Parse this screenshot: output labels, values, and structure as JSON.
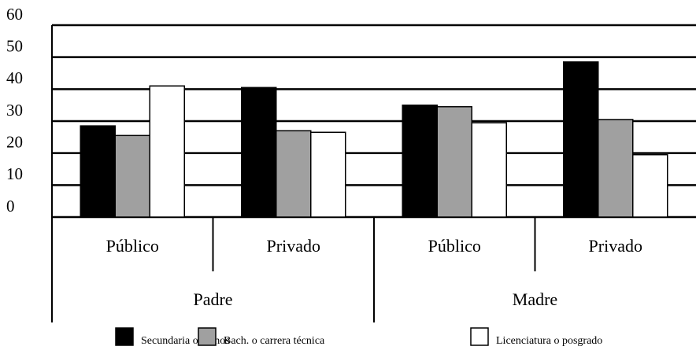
{
  "chart_data": {
    "type": "bar",
    "groups": [
      "Padre",
      "Madre"
    ],
    "categories": [
      "Público",
      "Privado",
      "Público",
      "Privado"
    ],
    "series": [
      {
        "name": "Secundaria o menos",
        "color": "#000000",
        "values": [
          28.5,
          40.5,
          35,
          48.5
        ]
      },
      {
        "name": "Bach. o carrera técnica",
        "color": "#a0a0a0",
        "values": [
          25.5,
          27,
          34.5,
          30.5
        ]
      },
      {
        "name": "Licenciatura o posgrado",
        "color": "#ffffff",
        "values": [
          41,
          26.5,
          29.5,
          19.5
        ]
      }
    ],
    "ylim": [
      0,
      60
    ],
    "yticks": [
      0,
      10,
      20,
      30,
      40,
      50,
      60
    ],
    "grid": true,
    "legend": "bottom"
  }
}
